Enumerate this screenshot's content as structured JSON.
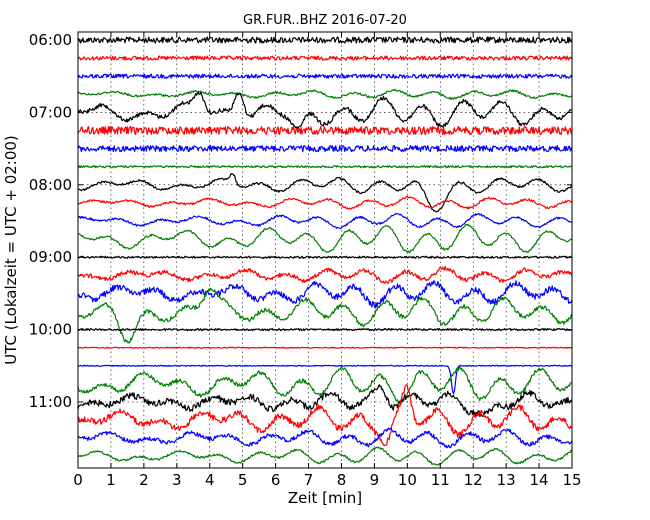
{
  "chart_data": {
    "type": "line",
    "title": "GR.FUR..BHZ 2016-07-20",
    "xlabel": "Zeit  [min]",
    "ylabel": "UTC (Lokalzeit = UTC + 02:00)",
    "xlim": [
      0,
      15
    ],
    "x_ticks": [
      "0",
      "1",
      "2",
      "3",
      "4",
      "5",
      "6",
      "7",
      "8",
      "9",
      "10",
      "11",
      "12",
      "13",
      "14",
      "15"
    ],
    "y_ticks": [
      "06:00",
      "07:00",
      "08:00",
      "09:00",
      "10:00",
      "11:00"
    ],
    "grid": true,
    "colors": [
      "#000000",
      "#ff0000",
      "#0000ff",
      "#008000"
    ],
    "traces": [
      {
        "start": "06:00",
        "color": "#000000"
      },
      {
        "start": "06:15",
        "color": "#ff0000"
      },
      {
        "start": "06:30",
        "color": "#0000ff"
      },
      {
        "start": "06:45",
        "color": "#008000"
      },
      {
        "start": "07:00",
        "color": "#000000"
      },
      {
        "start": "07:15",
        "color": "#ff0000"
      },
      {
        "start": "07:30",
        "color": "#0000ff"
      },
      {
        "start": "07:45",
        "color": "#008000"
      },
      {
        "start": "08:00",
        "color": "#000000"
      },
      {
        "start": "08:15",
        "color": "#ff0000"
      },
      {
        "start": "08:30",
        "color": "#0000ff"
      },
      {
        "start": "08:45",
        "color": "#008000"
      },
      {
        "start": "09:00",
        "color": "#000000"
      },
      {
        "start": "09:15",
        "color": "#ff0000"
      },
      {
        "start": "09:30",
        "color": "#0000ff"
      },
      {
        "start": "09:45",
        "color": "#008000"
      },
      {
        "start": "10:00",
        "color": "#000000"
      },
      {
        "start": "10:15",
        "color": "#ff0000"
      },
      {
        "start": "10:30",
        "color": "#0000ff"
      },
      {
        "start": "10:45",
        "color": "#008000"
      },
      {
        "start": "11:00",
        "color": "#000000"
      },
      {
        "start": "11:15",
        "color": "#ff0000"
      },
      {
        "start": "11:30",
        "color": "#0000ff"
      },
      {
        "start": "11:45",
        "color": "#008000"
      }
    ]
  }
}
